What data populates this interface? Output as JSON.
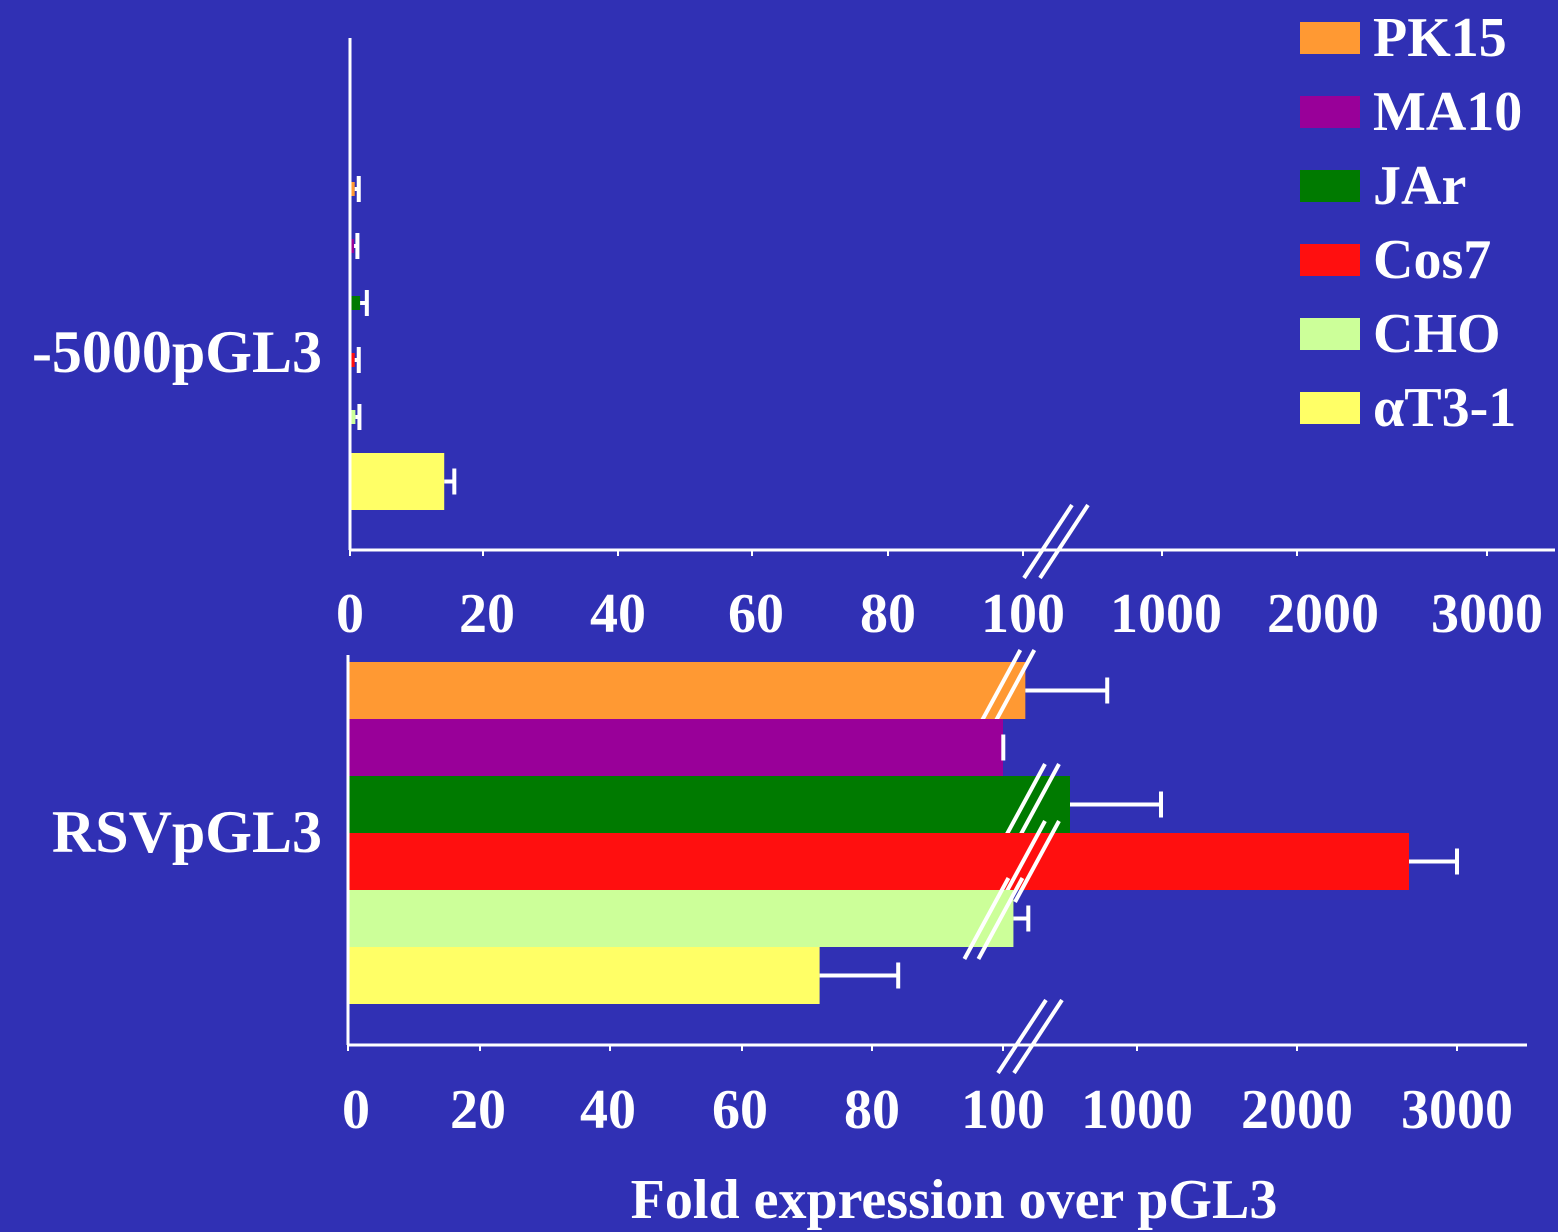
{
  "chart_data": {
    "type": "bar",
    "orientation": "horizontal",
    "xlabel": "Fold expression over pGL3",
    "x_ticks": [
      "0",
      "20",
      "40",
      "60",
      "80",
      "100",
      "1000",
      "2000",
      "3000"
    ],
    "axis_break": "between 100 and 1000",
    "legend": {
      "placement": "top-right",
      "entries": [
        {
          "name": "PK15",
          "color": "#ff9933"
        },
        {
          "name": "MA10",
          "color": "#990099"
        },
        {
          "name": "JAr",
          "color": "#007a00"
        },
        {
          "name": "Cos7",
          "color": "#ff0f0f"
        },
        {
          "name": "CHO",
          "color": "#ccff99"
        },
        {
          "name": "αT3-1",
          "color": "#ffff66"
        }
      ]
    },
    "panels": [
      {
        "label": "-5000pGL3",
        "series": [
          {
            "name": "PK15",
            "value": 0.7,
            "error": 0.6
          },
          {
            "name": "MA10",
            "value": 0.6,
            "error": 0.5
          },
          {
            "name": "JAr",
            "value": 1.5,
            "error": 1.0
          },
          {
            "name": "Cos7",
            "value": 0.7,
            "error": 0.6
          },
          {
            "name": "CHO",
            "value": 0.8,
            "error": 0.6
          },
          {
            "name": "αT3-1",
            "value": 14,
            "error": 1.5
          }
        ]
      },
      {
        "label": "RSVpGL3",
        "series": [
          {
            "name": "PK15",
            "value": 250,
            "error": 550
          },
          {
            "name": "MA10",
            "value": 100,
            "error": 2
          },
          {
            "name": "JAr",
            "value": 550,
            "error": 600
          },
          {
            "name": "Cos7",
            "value": 2700,
            "error": 300
          },
          {
            "name": "CHO",
            "value": 170,
            "error": 100
          },
          {
            "name": "αT3-1",
            "value": 72,
            "error": 12
          }
        ]
      }
    ]
  }
}
